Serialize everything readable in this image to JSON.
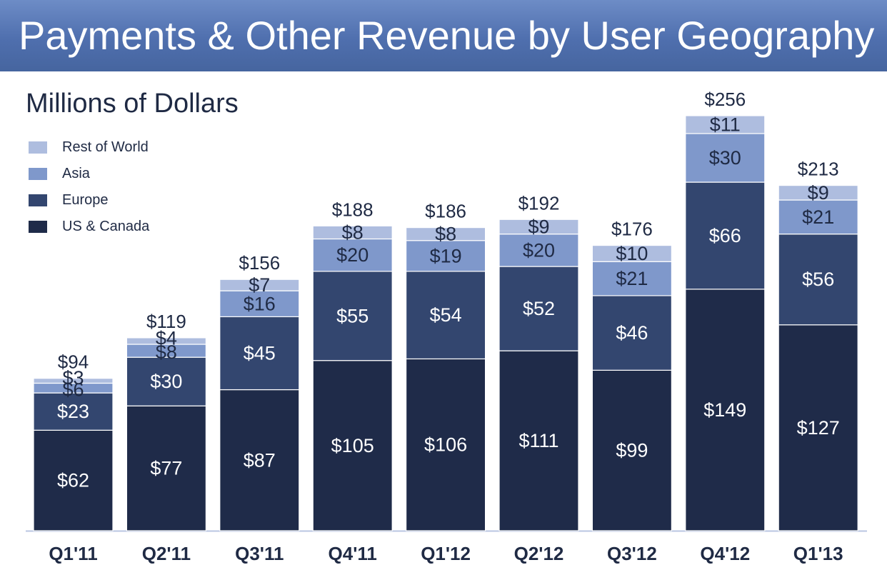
{
  "title": "Payments & Other Revenue by User Geography",
  "chart_data": {
    "type": "bar",
    "stacked": true,
    "title": "Payments & Other Revenue by User Geography",
    "subtitle": "Millions of Dollars",
    "categories": [
      "Q1'11",
      "Q2'11",
      "Q3'11",
      "Q4'11",
      "Q1'12",
      "Q2'12",
      "Q3'12",
      "Q4'12",
      "Q1'13"
    ],
    "series": [
      {
        "name": "US & Canada",
        "color": "#1f2b49",
        "values": [
          62,
          77,
          87,
          105,
          106,
          111,
          99,
          149,
          127
        ],
        "labels": [
          "$62",
          "$77",
          "$87",
          "$105",
          "$106",
          "$111",
          "$99",
          "$149",
          "$127"
        ]
      },
      {
        "name": "Europe",
        "color": "#33466f",
        "values": [
          23,
          30,
          45,
          55,
          54,
          52,
          46,
          66,
          56
        ],
        "labels": [
          "$23",
          "$30",
          "$45",
          "$55",
          "$54",
          "$52",
          "$46",
          "$66",
          "$56"
        ]
      },
      {
        "name": "Asia",
        "color": "#7f98cb",
        "values": [
          6,
          8,
          16,
          20,
          19,
          20,
          21,
          30,
          21
        ],
        "labels": [
          "$6",
          "$8",
          "$16",
          "$20",
          "$19",
          "$20",
          "$21",
          "$30",
          "$21"
        ]
      },
      {
        "name": "Rest of World",
        "color": "#aebddf",
        "values": [
          3,
          4,
          7,
          8,
          8,
          9,
          10,
          11,
          9
        ],
        "labels": [
          "$3",
          "$4",
          "$7",
          "$8",
          "$8",
          "$9",
          "$10",
          "$11",
          "$9"
        ]
      }
    ],
    "totals": [
      94,
      119,
      156,
      188,
      186,
      192,
      176,
      256,
      213
    ],
    "total_labels": [
      "$94",
      "$119",
      "$156",
      "$188",
      "$186",
      "$192",
      "$176",
      "$256",
      "$213"
    ],
    "ylim": [
      0,
      256
    ],
    "grid": false,
    "legend_position": "top-left",
    "legend_order": [
      "Rest of World",
      "Asia",
      "Europe",
      "US & Canada"
    ]
  }
}
